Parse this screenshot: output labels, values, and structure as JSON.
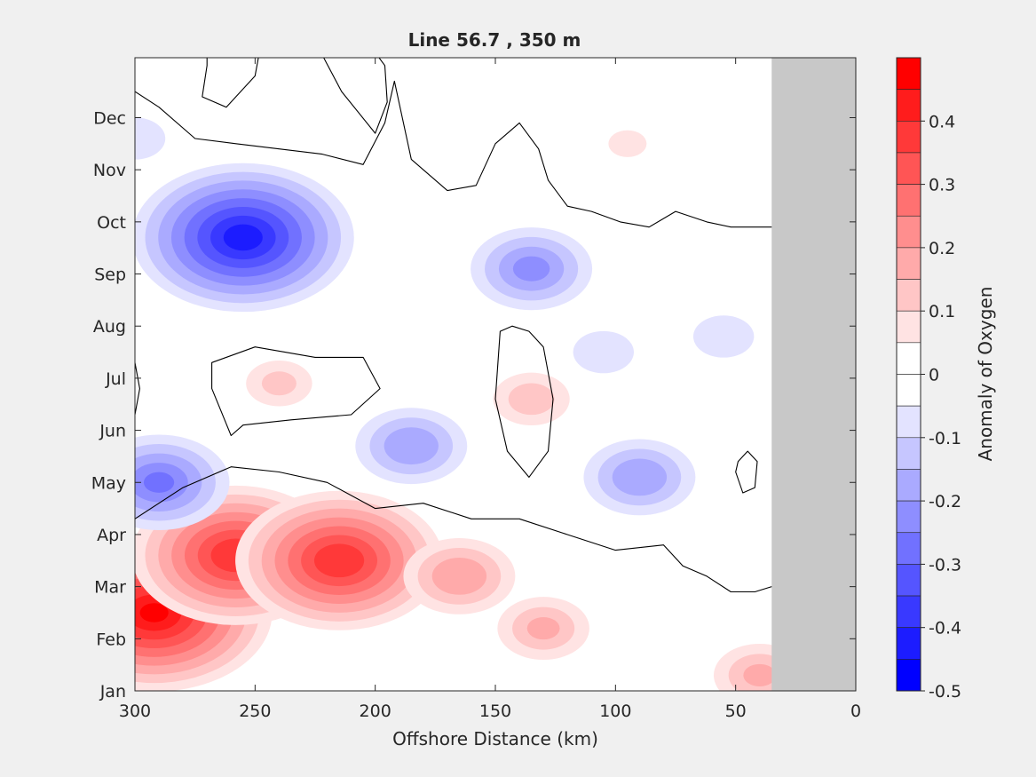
{
  "chart_data": {
    "type": "heatmap",
    "title": "Line 56.7 , 350 m",
    "xlabel": "Offshore Distance (km)",
    "ylabel": "",
    "xlim": [
      300,
      0
    ],
    "x_reversed": true,
    "x_ticks": [
      "300",
      "250",
      "200",
      "150",
      "100",
      "50",
      "0"
    ],
    "y_ticks": [
      "Jan",
      "Feb",
      "Mar",
      "Apr",
      "May",
      "Jun",
      "Jul",
      "Aug",
      "Sep",
      "Oct",
      "Nov",
      "Dec"
    ],
    "colorbar": {
      "label": "Anomaly of Oxygen",
      "range": [
        -0.5,
        0.5
      ],
      "ticks": [
        "0.4",
        "0.3",
        "0.2",
        "0.1",
        "0",
        "-0.1",
        "-0.2",
        "-0.3",
        "-0.4",
        "-0.5"
      ],
      "levels": [
        {
          "from": 0.45,
          "to": 0.5,
          "color": "#ff0000"
        },
        {
          "from": 0.4,
          "to": 0.45,
          "color": "#ff1c1c"
        },
        {
          "from": 0.35,
          "to": 0.4,
          "color": "#ff3939"
        },
        {
          "from": 0.3,
          "to": 0.35,
          "color": "#ff5555"
        },
        {
          "from": 0.25,
          "to": 0.3,
          "color": "#ff7171"
        },
        {
          "from": 0.2,
          "to": 0.25,
          "color": "#ff8e8e"
        },
        {
          "from": 0.15,
          "to": 0.2,
          "color": "#ffaaaa"
        },
        {
          "from": 0.1,
          "to": 0.15,
          "color": "#ffc6c6"
        },
        {
          "from": 0.05,
          "to": 0.1,
          "color": "#ffe3e3"
        },
        {
          "from": 0.0,
          "to": 0.05,
          "color": "#ffffff"
        },
        {
          "from": -0.05,
          "to": 0.0,
          "color": "#ffffff"
        },
        {
          "from": -0.1,
          "to": -0.05,
          "color": "#e3e3ff"
        },
        {
          "from": -0.15,
          "to": -0.1,
          "color": "#c6c6ff"
        },
        {
          "from": -0.2,
          "to": -0.15,
          "color": "#aaaaff"
        },
        {
          "from": -0.25,
          "to": -0.2,
          "color": "#8e8eff"
        },
        {
          "from": -0.3,
          "to": -0.25,
          "color": "#7171ff"
        },
        {
          "from": -0.35,
          "to": -0.3,
          "color": "#5555ff"
        },
        {
          "from": -0.4,
          "to": -0.35,
          "color": "#3939ff"
        },
        {
          "from": -0.45,
          "to": -0.4,
          "color": "#1c1cff"
        },
        {
          "from": -0.5,
          "to": -0.45,
          "color": "#0000ff"
        }
      ]
    },
    "no_data_region_km": [
      0,
      35
    ],
    "no_data_color": "#c8c8c8",
    "month_values": [
      "Jan",
      "Feb",
      "Mar",
      "Apr",
      "May",
      "Jun",
      "Jul",
      "Aug",
      "Sep",
      "Oct",
      "Nov",
      "Dec"
    ],
    "features": [
      {
        "kind": "positive",
        "km": 292,
        "month": 1.5,
        "peak": 0.48
      },
      {
        "kind": "positive",
        "km": 258,
        "month": 2.6,
        "peak": 0.42
      },
      {
        "kind": "positive",
        "km": 215,
        "month": 2.5,
        "peak": 0.42
      },
      {
        "kind": "positive",
        "km": 165,
        "month": 2.2,
        "peak": 0.22
      },
      {
        "kind": "positive",
        "km": 130,
        "month": 1.2,
        "peak": 0.18
      },
      {
        "kind": "positive",
        "km": 40,
        "month": 0.3,
        "peak": 0.18
      },
      {
        "kind": "positive",
        "km": 240,
        "month": 5.9,
        "peak": 0.13
      },
      {
        "kind": "positive",
        "km": 135,
        "month": 5.6,
        "peak": 0.15
      },
      {
        "kind": "positive",
        "km": 95,
        "month": 10.5,
        "peak": 0.08
      },
      {
        "kind": "negative",
        "km": 255,
        "month": 8.7,
        "peak": -0.45
      },
      {
        "kind": "negative",
        "km": 290,
        "month": 4.0,
        "peak": -0.28
      },
      {
        "kind": "negative",
        "km": 135,
        "month": 8.1,
        "peak": -0.24
      },
      {
        "kind": "negative",
        "km": 185,
        "month": 4.7,
        "peak": -0.22
      },
      {
        "kind": "negative",
        "km": 90,
        "month": 4.1,
        "peak": -0.22
      },
      {
        "kind": "negative",
        "km": 105,
        "month": 6.5,
        "peak": -0.12
      },
      {
        "kind": "negative",
        "km": 55,
        "month": 6.8,
        "peak": -0.12
      },
      {
        "kind": "negative",
        "km": 300,
        "month": 10.6,
        "peak": -0.12
      }
    ],
    "zero_contours": [
      {
        "name": "upper zero contour",
        "km": [
          300,
          290,
          275,
          258,
          240,
          222,
          205,
          196,
          192,
          185,
          170,
          158,
          150,
          140,
          132,
          128,
          120,
          110,
          98,
          86,
          75,
          62,
          52,
          44,
          35
        ],
        "month": [
          11.5,
          11.2,
          10.6,
          10.5,
          10.4,
          10.3,
          10.1,
          10.9,
          11.7,
          10.2,
          9.6,
          9.7,
          10.5,
          10.9,
          10.4,
          9.8,
          9.3,
          9.2,
          9.0,
          8.9,
          9.2,
          9.0,
          8.9,
          8.9,
          8.9
        ]
      },
      {
        "name": "lower zero contour",
        "km": [
          300,
          280,
          260,
          240,
          220,
          200,
          180,
          160,
          140,
          120,
          100,
          80,
          72,
          62,
          52,
          42,
          35
        ],
        "month": [
          3.3,
          3.9,
          4.3,
          4.2,
          4.0,
          3.5,
          3.6,
          3.3,
          3.3,
          3.0,
          2.7,
          2.8,
          2.4,
          2.2,
          1.9,
          1.9,
          2.0
        ]
      },
      {
        "name": "closed contour near 135 km, Jul",
        "closed": true,
        "km": [
          148,
          143,
          136,
          130,
          126,
          128,
          136,
          145,
          150
        ],
        "month": [
          6.9,
          7.0,
          6.9,
          6.6,
          5.6,
          4.6,
          4.1,
          4.6,
          5.6
        ]
      },
      {
        "name": "closed contour near 243 km, Jul",
        "closed": true,
        "km": [
          268,
          250,
          225,
          205,
          198,
          210,
          235,
          255,
          260,
          268
        ],
        "month": [
          6.3,
          6.6,
          6.4,
          6.4,
          5.8,
          5.3,
          5.2,
          5.1,
          4.9,
          5.8
        ]
      },
      {
        "name": "closed contour near 259 km, Dec",
        "closed": true,
        "km": [
          270,
          258,
          248,
          250,
          262,
          272,
          270
        ],
        "month": [
          12.3,
          12.5,
          12.3,
          11.8,
          11.2,
          11.4,
          12.0
        ]
      },
      {
        "name": "closed contour near 207 km, Nov",
        "closed": true,
        "km": [
          222,
          212,
          204,
          196,
          195,
          200,
          214,
          222
        ],
        "month": [
          12.4,
          12.6,
          12.5,
          12.0,
          11.3,
          10.7,
          11.5,
          12.2
        ]
      },
      {
        "name": "closed contour near 46 km, May",
        "closed": true,
        "km": [
          49,
          45,
          41,
          42,
          47,
          50
        ],
        "month": [
          4.4,
          4.6,
          4.4,
          3.9,
          3.8,
          4.2
        ]
      },
      {
        "name": "edge contour near 300 km, Jul",
        "km": [
          300,
          298,
          300
        ],
        "month": [
          6.3,
          5.8,
          5.3
        ]
      }
    ]
  }
}
